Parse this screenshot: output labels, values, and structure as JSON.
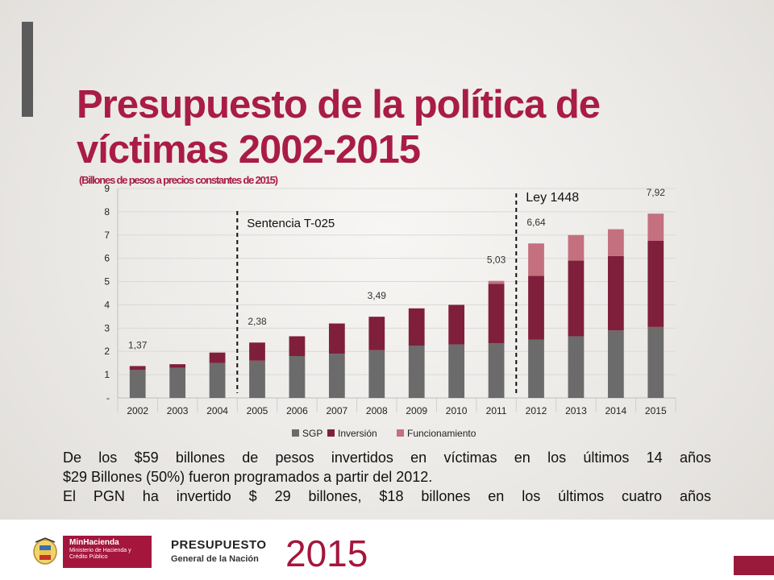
{
  "title": "Presupuesto de la política de víctimas 2002-2015",
  "subtitle": "(Billones de pesos a precios constantes de 2015)",
  "chart_data": {
    "type": "bar",
    "stacked": true,
    "categories": [
      "2002",
      "2003",
      "2004",
      "2005",
      "2006",
      "2007",
      "2008",
      "2009",
      "2010",
      "2011",
      "2012",
      "2013",
      "2014",
      "2015"
    ],
    "series": [
      {
        "name": "SGP",
        "color": "#6b6b6b",
        "values": [
          1.2,
          1.3,
          1.5,
          1.6,
          1.8,
          1.9,
          2.05,
          2.25,
          2.3,
          2.35,
          2.5,
          2.65,
          2.9,
          3.05
        ]
      },
      {
        "name": "Inversión",
        "color": "#7f1f3c",
        "values": [
          0.17,
          0.15,
          0.45,
          0.78,
          0.85,
          1.3,
          1.44,
          1.6,
          1.7,
          2.55,
          2.75,
          3.25,
          3.2,
          3.7
        ]
      },
      {
        "name": "Funcionamiento",
        "color": "#c4707f",
        "values": [
          0,
          0,
          0,
          0,
          0,
          0,
          0,
          0,
          0,
          0.13,
          1.39,
          1.1,
          1.15,
          1.17
        ]
      }
    ],
    "data_labels": [
      {
        "category": "2002",
        "text": "1,37"
      },
      {
        "category": "2005",
        "text": "2,38"
      },
      {
        "category": "2008",
        "text": "3,49"
      },
      {
        "category": "2011",
        "text": "5,03"
      },
      {
        "category": "2012",
        "text": "6,64"
      },
      {
        "category": "2015",
        "text": "7,92"
      }
    ],
    "y_ticks": [
      "-",
      "1",
      "2",
      "3",
      "4",
      "5",
      "6",
      "7",
      "8",
      "9"
    ],
    "ylim": [
      0,
      9
    ],
    "annotations": [
      {
        "text": "Sentencia T-025",
        "between": [
          "2004",
          "2005"
        ]
      },
      {
        "text": "Ley 1448",
        "between": [
          "2011",
          "2012"
        ]
      }
    ],
    "legend_position": "bottom",
    "grid": true
  },
  "description": {
    "line1": "De los $59 billones de pesos invertidos en víctimas en los últimos 14 años",
    "line2": "$29 Billones (50%) fueron programados a partir del 2012.",
    "line3": "El PGN ha invertido $ 29 billones, $18 billones en los últimos cuatro años"
  },
  "footer": {
    "ministry_name": "MinHacienda",
    "ministry_sub": "Ministerio de Hacienda y Crédito Público",
    "presupuesto": "PRESUPUESTO",
    "nacion": "General de la Nación",
    "year": "2015"
  }
}
